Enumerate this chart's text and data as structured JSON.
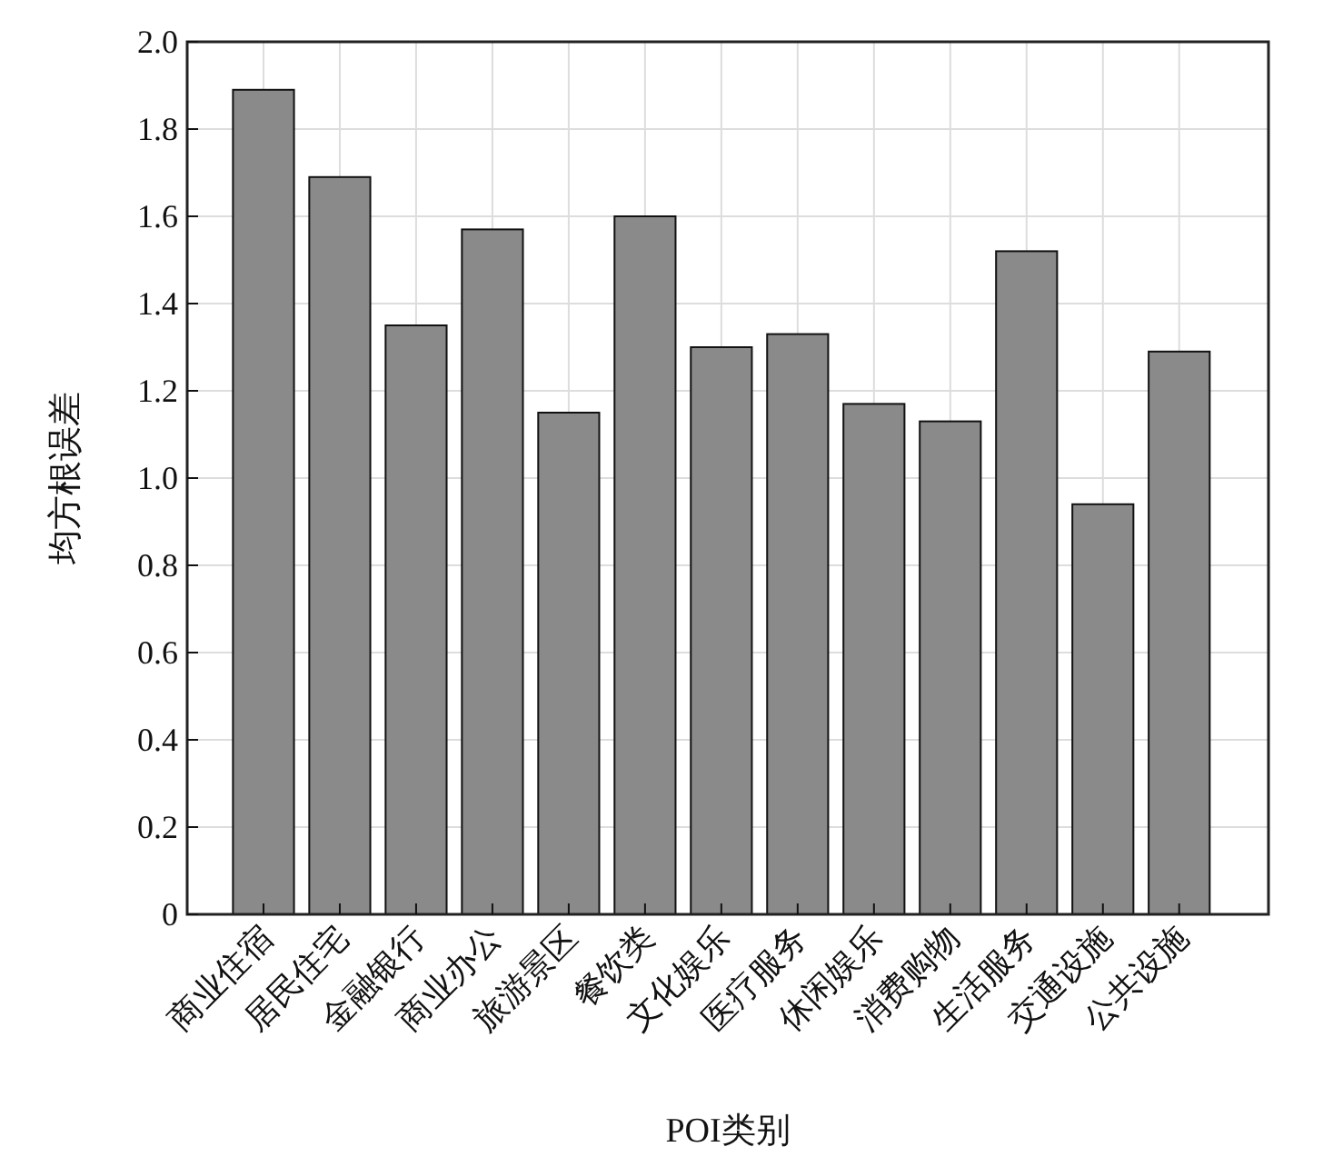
{
  "chart_data": {
    "type": "bar",
    "xlabel": "POI类别",
    "ylabel": "均方根误差",
    "categories": [
      "商业住宿",
      "居民住宅",
      "金融银行",
      "商业办公",
      "旅游景区",
      "餐饮类",
      "文化娱乐",
      "医疗服务",
      "休闲娱乐",
      "消费购物",
      "生活服务",
      "交通设施",
      "公共设施"
    ],
    "values": [
      1.89,
      1.69,
      1.35,
      1.57,
      1.15,
      1.6,
      1.3,
      1.33,
      1.17,
      1.13,
      1.52,
      0.94,
      1.29
    ],
    "color": "#8a8a8a",
    "ylim": [
      0,
      2.0
    ],
    "yticks": [
      0,
      0.2,
      0.4,
      0.6,
      0.8,
      {
        "value": 1.0,
        "label": "1.0"
      },
      1.2,
      1.4,
      1.6,
      1.8,
      {
        "value": 2.0,
        "label": "2.0"
      }
    ],
    "grid": true
  }
}
